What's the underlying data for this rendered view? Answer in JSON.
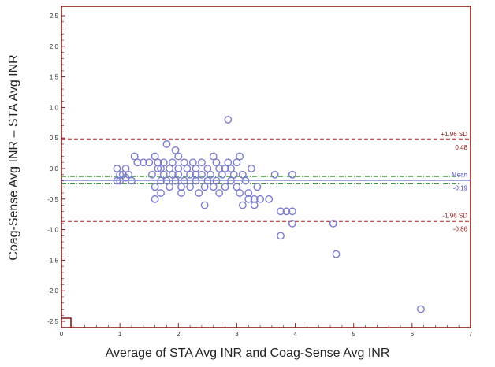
{
  "chart_data": {
    "type": "scatter",
    "title": "",
    "xlabel": "Average of STA Avg INR and Coag-Sense Avg INR",
    "ylabel": "Coag-Sense Avg INR – STA Avg INR",
    "xlim": [
      0,
      7
    ],
    "ylim": [
      -2.5,
      2.5
    ],
    "x_ticks": [
      "0",
      "1",
      "2",
      "3",
      "4",
      "5",
      "6",
      "7"
    ],
    "y_ticks": [
      "2.5",
      "2.0",
      "1.5",
      "1.0",
      "0.5",
      "0.0",
      "-0.5",
      "-1.0",
      "-1.5",
      "-2.0",
      "-2.5"
    ],
    "grid": false,
    "reference_lines": [
      {
        "name": "+1.96 SD",
        "value": 0.48,
        "value_label": "0.48",
        "color": "#b22222",
        "style": "dashed"
      },
      {
        "name": "Mean",
        "value": -0.19,
        "value_label": "-0.19",
        "color": "#4b4bb5",
        "style": "solid"
      },
      {
        "name": "-1.96 SD",
        "value": -0.86,
        "value_label": "-0.86",
        "color": "#b22222",
        "style": "dashed"
      }
    ],
    "ci_band": {
      "lower": -0.25,
      "upper": -0.13,
      "color": "#3a9a3a",
      "style": "dash-dot"
    },
    "colors": {
      "points": "#7b7bd0",
      "axis": "#8b1a1a"
    },
    "points": [
      [
        0.95,
        0.0
      ],
      [
        1.0,
        -0.1
      ],
      [
        1.0,
        -0.2
      ],
      [
        1.05,
        -0.1
      ],
      [
        1.1,
        0.0
      ],
      [
        1.1,
        -0.15
      ],
      [
        1.15,
        -0.1
      ],
      [
        0.95,
        -0.2
      ],
      [
        1.2,
        -0.2
      ],
      [
        1.25,
        0.2
      ],
      [
        1.3,
        0.1
      ],
      [
        1.4,
        0.1
      ],
      [
        1.5,
        0.1
      ],
      [
        1.55,
        -0.1
      ],
      [
        1.6,
        0.2
      ],
      [
        1.6,
        -0.3
      ],
      [
        1.6,
        -0.5
      ],
      [
        1.65,
        0.1
      ],
      [
        1.65,
        0.0
      ],
      [
        1.7,
        -0.2
      ],
      [
        1.7,
        0.0
      ],
      [
        1.7,
        -0.4
      ],
      [
        1.75,
        0.1
      ],
      [
        1.75,
        -0.1
      ],
      [
        1.8,
        0.4
      ],
      [
        1.8,
        -0.2
      ],
      [
        1.85,
        0.0
      ],
      [
        1.85,
        -0.3
      ],
      [
        1.9,
        0.1
      ],
      [
        1.9,
        -0.1
      ],
      [
        1.95,
        0.3
      ],
      [
        1.95,
        -0.2
      ],
      [
        2.0,
        0.0
      ],
      [
        2.0,
        -0.1
      ],
      [
        2.0,
        0.2
      ],
      [
        2.05,
        -0.3
      ],
      [
        2.05,
        -0.4
      ],
      [
        2.1,
        0.1
      ],
      [
        2.1,
        -0.2
      ],
      [
        2.15,
        0.0
      ],
      [
        2.2,
        -0.1
      ],
      [
        2.2,
        -0.3
      ],
      [
        2.25,
        0.1
      ],
      [
        2.3,
        -0.1
      ],
      [
        2.3,
        -0.2
      ],
      [
        2.3,
        0.0
      ],
      [
        2.35,
        -0.4
      ],
      [
        2.4,
        0.1
      ],
      [
        2.4,
        -0.1
      ],
      [
        2.45,
        -0.3
      ],
      [
        2.45,
        -0.6
      ],
      [
        2.5,
        0.0
      ],
      [
        2.5,
        -0.2
      ],
      [
        2.55,
        -0.1
      ],
      [
        2.6,
        0.2
      ],
      [
        2.6,
        -0.3
      ],
      [
        2.65,
        0.1
      ],
      [
        2.65,
        -0.2
      ],
      [
        2.7,
        0.0
      ],
      [
        2.7,
        -0.4
      ],
      [
        2.75,
        -0.1
      ],
      [
        2.8,
        0.0
      ],
      [
        2.8,
        -0.3
      ],
      [
        2.85,
        0.8
      ],
      [
        2.85,
        0.1
      ],
      [
        2.9,
        -0.2
      ],
      [
        2.9,
        0.0
      ],
      [
        2.95,
        -0.1
      ],
      [
        3.0,
        0.1
      ],
      [
        3.0,
        -0.3
      ],
      [
        3.05,
        -0.4
      ],
      [
        3.05,
        0.2
      ],
      [
        3.1,
        -0.1
      ],
      [
        3.1,
        -0.6
      ],
      [
        3.15,
        -0.2
      ],
      [
        3.2,
        -0.5
      ],
      [
        3.2,
        -0.4
      ],
      [
        3.25,
        0.0
      ],
      [
        3.3,
        -0.5
      ],
      [
        3.3,
        -0.6
      ],
      [
        3.35,
        -0.3
      ],
      [
        3.4,
        -0.5
      ],
      [
        3.55,
        -0.5
      ],
      [
        3.65,
        -0.1
      ],
      [
        3.75,
        -0.7
      ],
      [
        3.75,
        -1.1
      ],
      [
        3.85,
        -0.7
      ],
      [
        3.95,
        -0.7
      ],
      [
        3.95,
        -0.9
      ],
      [
        3.95,
        -0.1
      ],
      [
        4.65,
        -0.9
      ],
      [
        4.7,
        -1.4
      ],
      [
        6.15,
        -2.3
      ]
    ]
  }
}
